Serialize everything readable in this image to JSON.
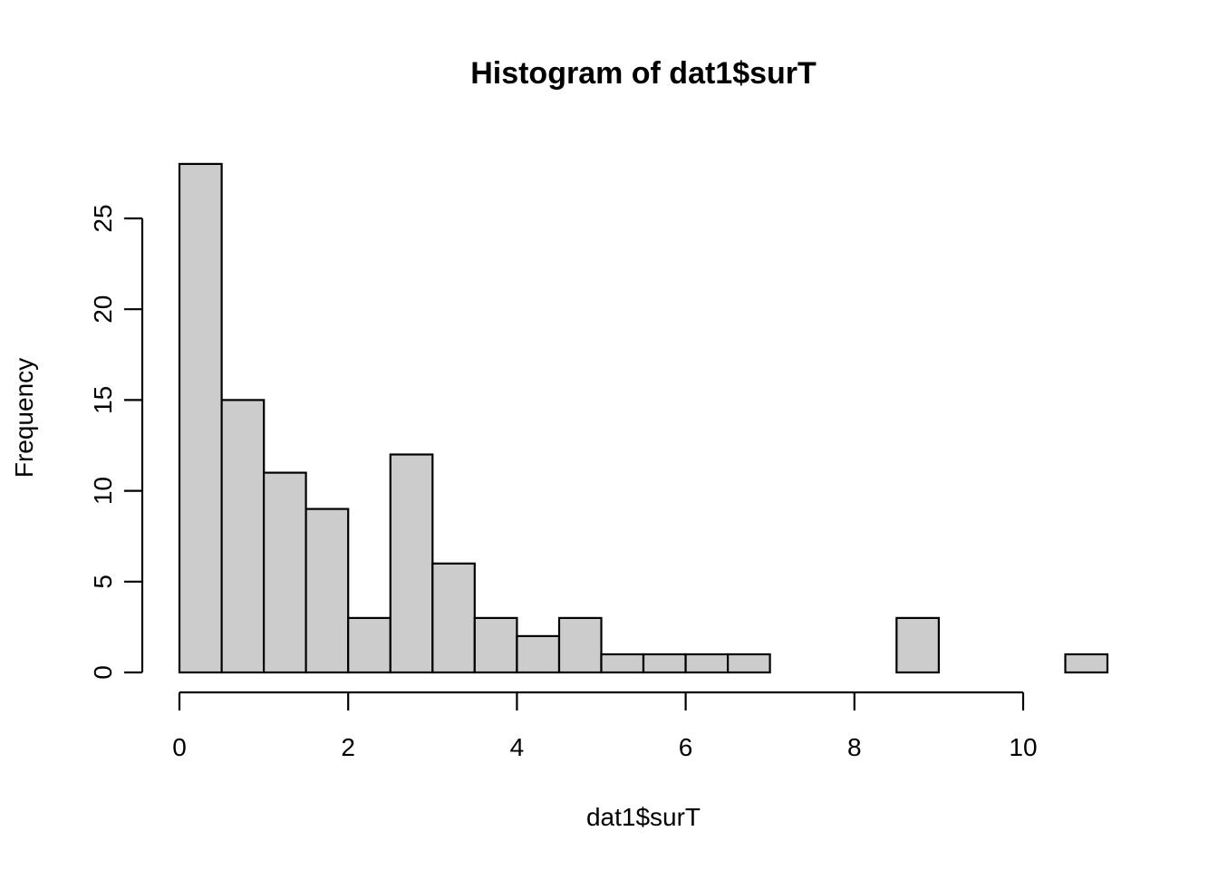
{
  "chart_data": {
    "type": "bar",
    "title": "Histogram of dat1$surT",
    "xlabel": "dat1$surT",
    "ylabel": "Frequency",
    "bins": [
      {
        "start": 0.0,
        "end": 0.5,
        "count": 28
      },
      {
        "start": 0.5,
        "end": 1.0,
        "count": 15
      },
      {
        "start": 1.0,
        "end": 1.5,
        "count": 11
      },
      {
        "start": 1.5,
        "end": 2.0,
        "count": 9
      },
      {
        "start": 2.0,
        "end": 2.5,
        "count": 3
      },
      {
        "start": 2.5,
        "end": 3.0,
        "count": 12
      },
      {
        "start": 3.0,
        "end": 3.5,
        "count": 6
      },
      {
        "start": 3.5,
        "end": 4.0,
        "count": 3
      },
      {
        "start": 4.0,
        "end": 4.5,
        "count": 2
      },
      {
        "start": 4.5,
        "end": 5.0,
        "count": 3
      },
      {
        "start": 5.0,
        "end": 5.5,
        "count": 1
      },
      {
        "start": 5.5,
        "end": 6.0,
        "count": 1
      },
      {
        "start": 6.0,
        "end": 6.5,
        "count": 1
      },
      {
        "start": 6.5,
        "end": 7.0,
        "count": 1
      },
      {
        "start": 7.0,
        "end": 7.5,
        "count": 0
      },
      {
        "start": 7.5,
        "end": 8.0,
        "count": 0
      },
      {
        "start": 8.0,
        "end": 8.5,
        "count": 0
      },
      {
        "start": 8.5,
        "end": 9.0,
        "count": 3
      },
      {
        "start": 9.0,
        "end": 9.5,
        "count": 0
      },
      {
        "start": 9.5,
        "end": 10.0,
        "count": 0
      },
      {
        "start": 10.0,
        "end": 10.5,
        "count": 0
      },
      {
        "start": 10.5,
        "end": 11.0,
        "count": 1
      }
    ],
    "xlim": [
      0,
      11
    ],
    "ylim": [
      0,
      28
    ],
    "xticks": [
      0,
      2,
      4,
      6,
      8,
      10
    ],
    "xtick_labels": [
      "0",
      "2",
      "4",
      "6",
      "8",
      "10"
    ],
    "yticks": [
      0,
      5,
      10,
      15,
      20,
      25
    ],
    "ytick_labels": [
      "0",
      "5",
      "10",
      "15",
      "20",
      "25"
    ],
    "bar_color": "#cccccc",
    "edge_color": "#000000",
    "grid": false
  }
}
